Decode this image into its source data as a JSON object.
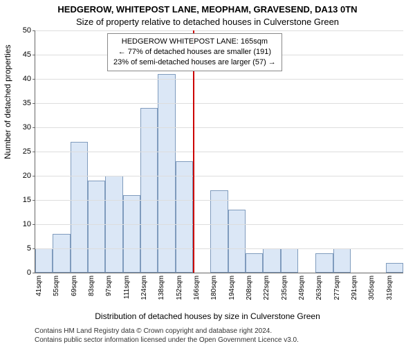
{
  "title": "HEDGEROW, WHITEPOST LANE, MEOPHAM, GRAVESEND, DA13 0TN",
  "subtitle": "Size of property relative to detached houses in Culverstone Green",
  "ylabel": "Number of detached properties",
  "xlabel": "Distribution of detached houses by size in Culverstone Green",
  "attribution_line1": "Contains HM Land Registry data © Crown copyright and database right 2024.",
  "attribution_line2": "Contains public sector information licensed under the Open Government Licence v3.0.",
  "chart": {
    "type": "histogram",
    "ylim": [
      0,
      50
    ],
    "ytick_step": 5,
    "label_fontsize": 12,
    "tick_fontsize": 11,
    "xtick_fontsize": 10,
    "background_color": "#ffffff",
    "grid_color": "#dddddd",
    "axis_color": "#666666",
    "bar_fill": "#dbe7f6",
    "bar_border": "#7f9bbd",
    "bar_width": 1.0,
    "reference_line": {
      "position_index": 9,
      "value_sqm": 165,
      "color": "#cc0000",
      "width": 2
    },
    "annotation": {
      "line1": "HEDGEROW WHITEPOST LANE: 165sqm",
      "line2": "← 77% of detached houses are smaller (191)",
      "line3": "23% of semi-detached houses are larger (57) →",
      "border_color": "#888888",
      "bg_color": "rgba(255,255,255,0.96)",
      "fontsize": 11
    },
    "bins": [
      {
        "label": "41sqm",
        "value": 5
      },
      {
        "label": "55sqm",
        "value": 8
      },
      {
        "label": "69sqm",
        "value": 27
      },
      {
        "label": "83sqm",
        "value": 19
      },
      {
        "label": "97sqm",
        "value": 20
      },
      {
        "label": "111sqm",
        "value": 16
      },
      {
        "label": "124sqm",
        "value": 34
      },
      {
        "label": "138sqm",
        "value": 41
      },
      {
        "label": "152sqm",
        "value": 23
      },
      {
        "label": "166sqm",
        "value": 0
      },
      {
        "label": "180sqm",
        "value": 17
      },
      {
        "label": "194sqm",
        "value": 13
      },
      {
        "label": "208sqm",
        "value": 4
      },
      {
        "label": "222sqm",
        "value": 5
      },
      {
        "label": "235sqm",
        "value": 5
      },
      {
        "label": "249sqm",
        "value": 0
      },
      {
        "label": "263sqm",
        "value": 4
      },
      {
        "label": "277sqm",
        "value": 5
      },
      {
        "label": "291sqm",
        "value": 0
      },
      {
        "label": "305sqm",
        "value": 0
      },
      {
        "label": "319sqm",
        "value": 2
      }
    ]
  }
}
